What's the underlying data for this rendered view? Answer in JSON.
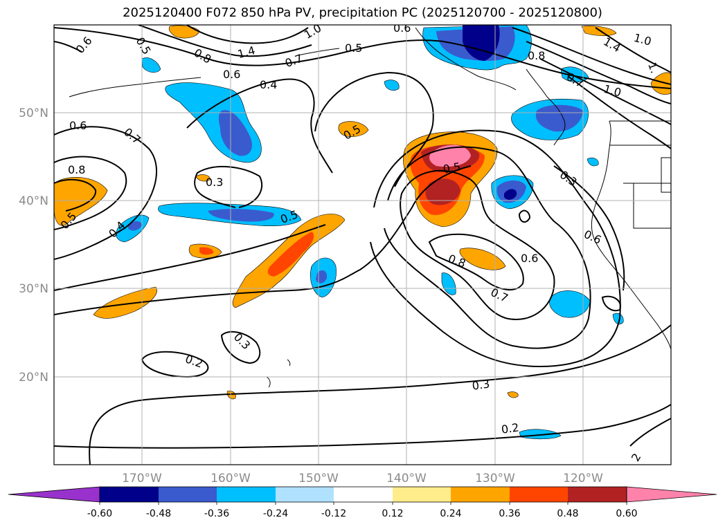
{
  "title": "2025120400 F072 850 hPa PV, precipitation PC (2025120700 - 2025120800)",
  "map": {
    "lat_labels": [
      "50°N",
      "40°N",
      "30°N",
      "20°N"
    ],
    "lon_labels": [
      "170°W",
      "160°W",
      "150°W",
      "140°W",
      "130°W",
      "120°W"
    ],
    "contour_labels": [
      {
        "v": "0.6"
      },
      {
        "v": "0.5"
      },
      {
        "v": "1.0"
      },
      {
        "v": "0.6"
      },
      {
        "v": "1.4"
      },
      {
        "v": "0.8"
      },
      {
        "v": "0.7"
      },
      {
        "v": "0.6"
      },
      {
        "v": "0.5"
      },
      {
        "v": "0.4"
      },
      {
        "v": "0.8"
      },
      {
        "v": "1.4"
      },
      {
        "v": "1.0"
      },
      {
        "v": "1."
      },
      {
        "v": "0.7"
      },
      {
        "v": "1.0"
      },
      {
        "v": "0.6"
      },
      {
        "v": "0.7"
      },
      {
        "v": "0.5"
      },
      {
        "v": "0.5"
      },
      {
        "v": "0.8"
      },
      {
        "v": "0.3"
      },
      {
        "v": "0.5"
      },
      {
        "v": "0.5"
      },
      {
        "v": "0.4"
      },
      {
        "v": "0.3"
      },
      {
        "v": "0.6"
      },
      {
        "v": "0.8"
      },
      {
        "v": "0.6"
      },
      {
        "v": "0.7"
      },
      {
        "v": "0.3"
      },
      {
        "v": "0.2"
      },
      {
        "v": "0.3"
      },
      {
        "v": "0.2"
      },
      {
        "v": "2"
      }
    ]
  },
  "colorbar": {
    "ticks": [
      "-0.60",
      "-0.48",
      "-0.36",
      "-0.24",
      "-0.12",
      "0.12",
      "0.24",
      "0.36",
      "0.48",
      "0.60"
    ],
    "colors": [
      "#9932cc",
      "#00008b",
      "#3a5bcd",
      "#00bfff",
      "#b0e2ff",
      "#ffffff",
      "#ffec8b",
      "#ffa500",
      "#ff4500",
      "#b22222",
      "#ff82ab",
      "#ff82ab"
    ]
  },
  "colors": {
    "pos_light": "#ffa500",
    "pos_mid": "#ff4500",
    "pos_dark": "#b22222",
    "pos_max": "#ff82ab",
    "neg_light": "#00bfff",
    "neg_mid": "#3a5bcd",
    "neg_dark": "#00008b"
  }
}
